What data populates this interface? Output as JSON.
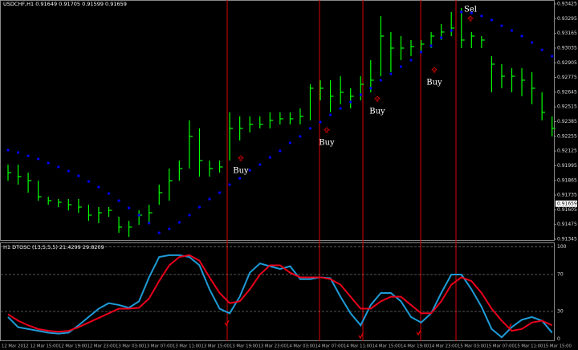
{
  "chart_data": [
    {
      "type": "ohlc",
      "title": "USDCHF,H1  0.91649 0.91705 0.91599 0.91659",
      "color": "#00ff00",
      "high": [
        0.92005,
        0.92005,
        0.91934,
        0.91863,
        0.91721,
        0.917,
        0.917,
        0.917,
        0.9165,
        0.91629,
        0.91629,
        0.91544,
        0.91508,
        0.916,
        0.9165,
        0.91828,
        0.9197,
        0.92041,
        0.92396,
        0.92325,
        0.92041,
        0.92041,
        0.92467,
        0.92431,
        0.92431,
        0.92431,
        0.92467,
        0.92467,
        0.92467,
        0.92502,
        0.92715,
        0.92751,
        0.92751,
        0.92786,
        0.9268,
        0.92786,
        0.92928,
        0.93319,
        0.93177,
        0.93141,
        0.93106,
        0.93106,
        0.93177,
        0.93248,
        0.93354,
        0.9339,
        0.93177,
        0.93141,
        0.92964,
        0.92893,
        0.92857,
        0.92857,
        0.92822,
        0.92644,
        0.92431
      ],
      "low": [
        0.91863,
        0.91828,
        0.91757,
        0.91686,
        0.9165,
        0.91629,
        0.916,
        0.91579,
        0.91508,
        0.91487,
        0.91544,
        0.91402,
        0.91366,
        0.91473,
        0.91487,
        0.9165,
        0.91686,
        0.91863,
        0.9197,
        0.91899,
        0.91899,
        0.91934,
        0.92041,
        0.92218,
        0.92289,
        0.92325,
        0.92325,
        0.9236,
        0.9236,
        0.9236,
        0.92396,
        0.92573,
        0.92467,
        0.92538,
        0.92502,
        0.92573,
        0.92644,
        0.92786,
        0.92822,
        0.92928,
        0.92964,
        0.92999,
        0.93035,
        0.93106,
        0.93141,
        0.93035,
        0.93035,
        0.93035,
        0.92644,
        0.9268,
        0.92644,
        0.92609,
        0.92538,
        0.92396,
        0.92254
      ],
      "close": [
        0.91934,
        0.91899,
        0.91863,
        0.91721,
        0.91686,
        0.91672,
        0.9165,
        0.91629,
        0.91558,
        0.91579,
        0.916,
        0.91452,
        0.91452,
        0.91558,
        0.91579,
        0.91757,
        0.91863,
        0.9197,
        0.92254,
        0.92041,
        0.9197,
        0.91984,
        0.92325,
        0.92325,
        0.9236,
        0.9236,
        0.92396,
        0.9241,
        0.9241,
        0.92431,
        0.9268,
        0.9268,
        0.92609,
        0.92644,
        0.92609,
        0.92715,
        0.92751,
        0.93141,
        0.93035,
        0.93035,
        0.93049,
        0.9307,
        0.93141,
        0.93177,
        0.93212,
        0.93106,
        0.93141,
        0.93106,
        0.92893,
        0.92786,
        0.92786,
        0.92751,
        0.9268,
        0.92467,
        0.92325
      ],
      "dots_color": "#0000ff",
      "dots": [
        0.92133,
        0.92112,
        0.92083,
        0.92055,
        0.92019,
        0.91984,
        0.91948,
        0.91906,
        0.91856,
        0.91806,
        0.91749,
        0.91686,
        0.91622,
        0.91558,
        0.91487,
        0.91402,
        0.91437,
        0.91494,
        0.91558,
        0.91629,
        0.917,
        0.91757,
        0.91828,
        0.91884,
        0.91955,
        0.92005,
        0.92069,
        0.92126,
        0.92197,
        0.92254,
        0.92325,
        0.92381,
        0.92445,
        0.92502,
        0.92559,
        0.92623,
        0.9268,
        0.92751,
        0.92807,
        0.92871,
        0.92928,
        0.92999,
        0.93056,
        0.93127,
        0.93191,
        0.93354,
        0.93347,
        0.93319,
        0.93283,
        0.93233,
        0.93191,
        0.93141,
        0.93084,
        0.9302,
        0.92964
      ],
      "current_price": 0.91659,
      "annotations": [
        "Buy",
        "Buy",
        "Buy",
        "Buy",
        "Sel"
      ],
      "ylim": [
        0.91345,
        0.93425
      ],
      "yticks": [
        0.91345,
        0.91475,
        0.91605,
        0.91735,
        0.91865,
        0.91995,
        0.92125,
        0.92255,
        0.92385,
        0.92515,
        0.92645,
        0.92775,
        0.92905,
        0.93035,
        0.93165,
        0.93295,
        0.93425
      ],
      "x_labels": [
        "12 Mar 2012",
        "12 Mar 15:00",
        "12 Mar 19:00",
        "12 Mar 23:00",
        "13 Mar 03:00",
        "13 Mar 07:00",
        "13 Mar 11:00",
        "13 Mar 15:00",
        "13 Mar 19:00",
        "13 Mar 23:00",
        "14 Mar 03:00",
        "14 Mar 07:00",
        "14 Mar 11:00",
        "14 Mar 15:00",
        "14 Mar 19:00",
        "14 Mar 23:00",
        "15 Mar 03:00",
        "15 Mar 07:00",
        "15 Mar 11:00",
        "15 Mar 15:00"
      ]
    },
    {
      "type": "line",
      "title": "H1 DTOSC (13,5,5,5) 21.4299 29.8209",
      "series": [
        {
          "color": "#1e9bd7",
          "values": [
            24,
            13,
            11,
            9,
            7,
            6,
            7,
            15,
            24,
            33,
            39,
            37,
            34,
            41,
            67,
            89,
            91,
            91,
            89,
            80,
            54,
            33,
            28,
            46,
            72,
            82,
            79,
            76,
            79,
            65,
            65,
            67,
            66,
            46,
            28,
            15,
            37,
            50,
            50,
            41,
            24,
            18,
            28,
            50,
            70,
            70,
            54,
            35,
            11,
            2,
            13,
            21,
            24,
            20,
            7
          ]
        },
        {
          "color": "#e8001c",
          "values": [
            27,
            20,
            15,
            11,
            9,
            8,
            9,
            13,
            18,
            23,
            28,
            33,
            33,
            34,
            44,
            63,
            80,
            89,
            91,
            85,
            67,
            50,
            39,
            41,
            54,
            70,
            80,
            80,
            72,
            67,
            67,
            67,
            65,
            59,
            46,
            33,
            33,
            41,
            46,
            46,
            37,
            28,
            28,
            41,
            59,
            67,
            63,
            50,
            33,
            20,
            9,
            11,
            18,
            20,
            15
          ]
        }
      ],
      "ylim": [
        0,
        100
      ],
      "yticks": [
        0,
        30,
        70,
        100
      ],
      "grid": true
    }
  ]
}
